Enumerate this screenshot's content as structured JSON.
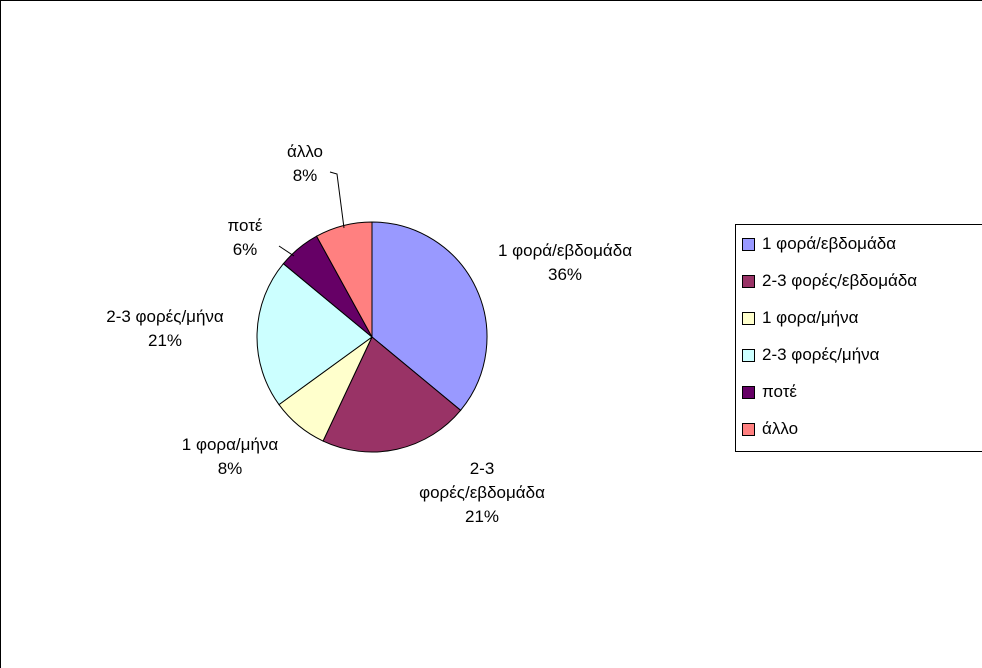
{
  "chart_data": {
    "type": "pie",
    "slices": [
      {
        "label": "1 φορά/εβδομάδα",
        "value": 36,
        "display": "36%",
        "color": "#9999ff",
        "callout": [
          "1 φορά/εβδομάδα",
          "36%"
        ]
      },
      {
        "label": "2-3 φορές/εβδομάδα",
        "value": 21,
        "display": "21%",
        "color": "#993366",
        "callout": [
          "2-3",
          "φορές/εβδομάδα",
          "21%"
        ]
      },
      {
        "label": "1 φορα/μήνα",
        "value": 8,
        "display": "8%",
        "color": "#ffffcc",
        "callout": [
          "1 φορα/μήνα",
          "8%"
        ]
      },
      {
        "label": "2-3 φορές/μήνα",
        "value": 21,
        "display": "21%",
        "color": "#ccffff",
        "callout": [
          "2-3 φορές/μήνα",
          "21%"
        ]
      },
      {
        "label": "ποτέ",
        "value": 6,
        "display": "6%",
        "color": "#660066",
        "callout": [
          "ποτέ",
          "6%"
        ]
      },
      {
        "label": "άλλο",
        "value": 8,
        "display": "8%",
        "color": "#ff8080",
        "callout": [
          "άλλο",
          "8%"
        ]
      }
    ],
    "legend_position": "right"
  }
}
